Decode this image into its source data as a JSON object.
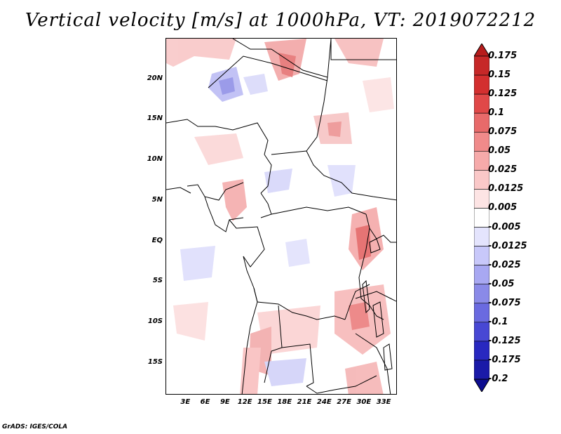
{
  "title": "Vertical velocity [m/s] at 1000hPa, VT: 2019072212",
  "footer": "GrADS: IGES/COLA",
  "y_ticks": [
    {
      "label": "20N",
      "lat": 20
    },
    {
      "label": "15N",
      "lat": 15
    },
    {
      "label": "10N",
      "lat": 10
    },
    {
      "label": "5N",
      "lat": 5
    },
    {
      "label": "EQ",
      "lat": 0
    },
    {
      "label": "5S",
      "lat": -5
    },
    {
      "label": "10S",
      "lat": -10
    },
    {
      "label": "15S",
      "lat": -15
    }
  ],
  "x_ticks": [
    {
      "label": "3E",
      "lon": 3
    },
    {
      "label": "6E",
      "lon": 6
    },
    {
      "label": "9E",
      "lon": 9
    },
    {
      "label": "12E",
      "lon": 12
    },
    {
      "label": "15E",
      "lon": 15
    },
    {
      "label": "18E",
      "lon": 18
    },
    {
      "label": "21E",
      "lon": 21
    },
    {
      "label": "24E",
      "lon": 24
    },
    {
      "label": "27E",
      "lon": 27
    },
    {
      "label": "30E",
      "lon": 30
    },
    {
      "label": "33E",
      "lon": 33
    }
  ],
  "map_extent": {
    "lon_min": 0,
    "lon_max": 35,
    "lat_min": -19,
    "lat_max": 25
  },
  "colorbar": {
    "labels": [
      "0.175",
      "0.15",
      "0.125",
      "0.1",
      "0.075",
      "0.05",
      "0.025",
      "0.0125",
      "0.005",
      "-0.005",
      "-0.0125",
      "-0.025",
      "-0.05",
      "-0.075",
      "-0.1",
      "-0.125",
      "-0.175",
      "-0.2"
    ],
    "colors": [
      "#b71c1c",
      "#c62828",
      "#d32f2f",
      "#e04848",
      "#e86a6a",
      "#f08a8a",
      "#f6aaaa",
      "#fac8c8",
      "#fde4e4",
      "#ffffff",
      "#e4e4fd",
      "#c8c8fa",
      "#a8a8f2",
      "#8a8ae8",
      "#6a6ae0",
      "#4848d4",
      "#2828c0",
      "#1a1aa8",
      "#0d0d90"
    ]
  }
}
